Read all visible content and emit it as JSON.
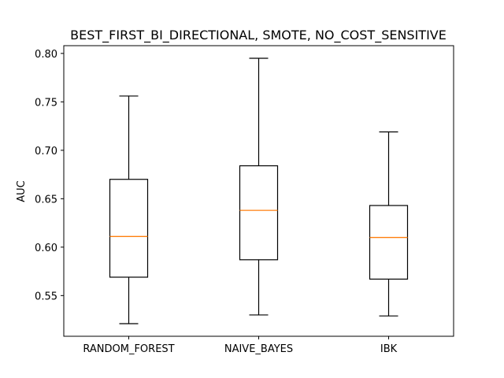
{
  "chart_data": {
    "type": "boxplot",
    "title": "BEST_FIRST_BI_DIRECTIONAL, SMOTE, NO_COST_SENSITIVE",
    "xlabel": "",
    "ylabel": "AUC",
    "ylim": [
      0.508,
      0.808
    ],
    "yticks": [
      0.55,
      0.6,
      0.65,
      0.7,
      0.75,
      0.8
    ],
    "ytick_labels": [
      "0.55",
      "0.60",
      "0.65",
      "0.70",
      "0.75",
      "0.80"
    ],
    "categories": [
      "RANDOM_FOREST",
      "NAIVE_BAYES",
      "IBK"
    ],
    "boxes": [
      {
        "label": "RANDOM_FOREST",
        "whisker_low": 0.521,
        "q1": 0.569,
        "median": 0.611,
        "q3": 0.67,
        "whisker_high": 0.756
      },
      {
        "label": "NAIVE_BAYES",
        "whisker_low": 0.53,
        "q1": 0.587,
        "median": 0.638,
        "q3": 0.684,
        "whisker_high": 0.795
      },
      {
        "label": "IBK",
        "whisker_low": 0.529,
        "q1": 0.567,
        "median": 0.61,
        "q3": 0.643,
        "whisker_high": 0.719
      }
    ],
    "colors": {
      "box": "#000000",
      "median": "#ff7f0e",
      "background": "#ffffff"
    },
    "grid": false,
    "legend": "none"
  }
}
